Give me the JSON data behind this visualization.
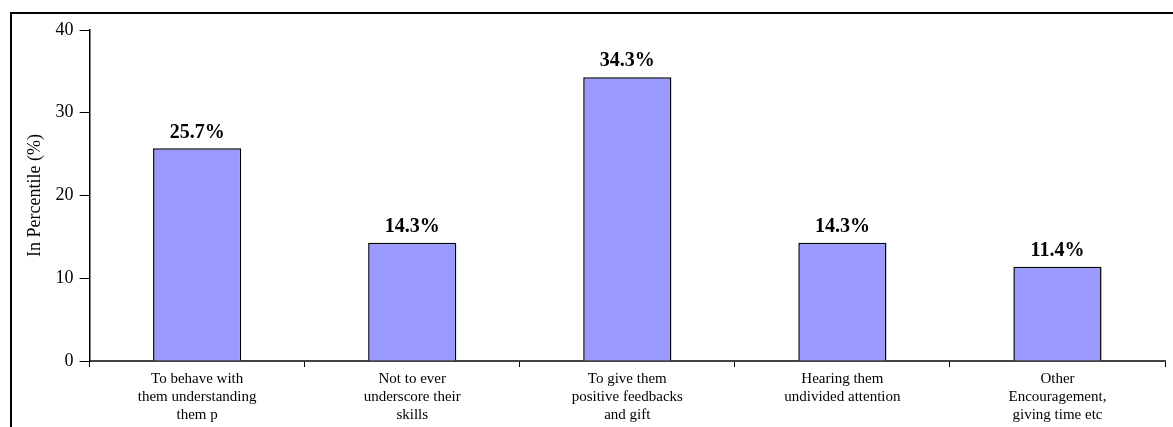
{
  "chart_data": {
    "type": "bar",
    "ylabel": "In Percentile (%)",
    "categories": [
      "To behave with them understanding them p",
      "Not to ever underscore their skills",
      "To give them positive feedbacks and gift",
      "Hearing them undivided attention",
      "Other Encouragement, giving time etc"
    ],
    "values": [
      25.7,
      14.3,
      34.3,
      14.3,
      11.4
    ],
    "value_labels": [
      "25.7%",
      "14.3%",
      "34.3%",
      "14.3%",
      "11.4%"
    ],
    "color": "#9999ff",
    "ylim": [
      0,
      40
    ],
    "yticks": [
      0,
      10,
      20,
      30,
      40
    ],
    "grid": false,
    "legend": false
  }
}
